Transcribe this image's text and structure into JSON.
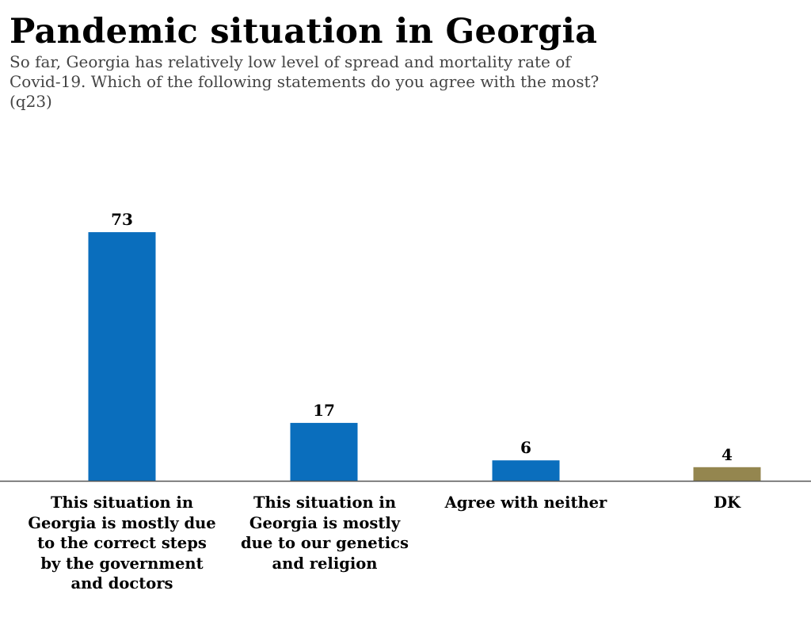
{
  "title": "Pandemic situation in Georgia",
  "subtitle_lines": [
    "So far, Georgia has relatively low level of spread and mortality rate of",
    "Covid-19. Which of the following statements do you agree with the most?",
    "(q23)"
  ],
  "colors": {
    "bar": "#0a6ebd",
    "bar_dk": "#94864f",
    "axis": "#555555",
    "subtitle": "#444444"
  },
  "chart_data": {
    "type": "bar",
    "title": "Pandemic situation in Georgia",
    "xlabel": "",
    "ylabel": "",
    "ylim": [
      0,
      80
    ],
    "grid": false,
    "legend": "none",
    "categories": [
      "This situation in Georgia is mostly due to the correct steps by the government and doctors",
      "This situation in Georgia is mostly due to our genetics and religion",
      "Agree with neither",
      "DK"
    ],
    "values": [
      73,
      17,
      6,
      4
    ],
    "data_labels": [
      "73",
      "17",
      "6",
      "4"
    ],
    "bar_colors": [
      "#0a6ebd",
      "#0a6ebd",
      "#0a6ebd",
      "#94864f"
    ]
  }
}
